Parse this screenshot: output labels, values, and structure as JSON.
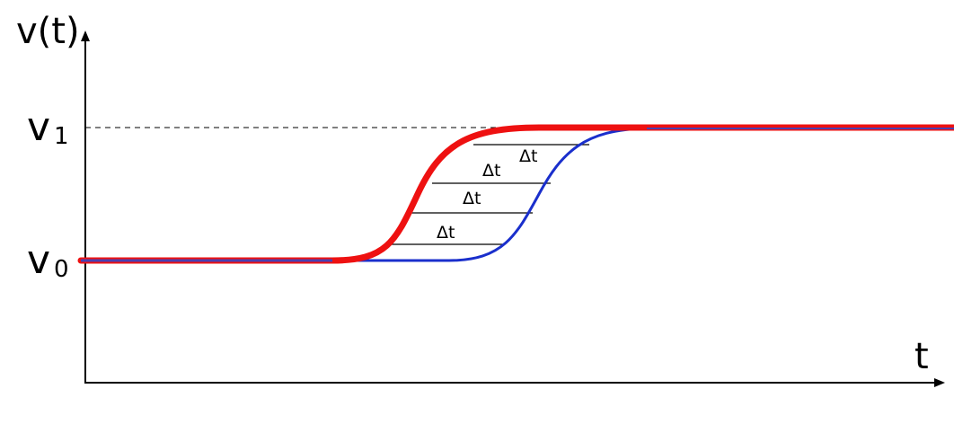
{
  "axes": {
    "y_label": "v(t)",
    "x_label": "t"
  },
  "levels": [
    {
      "symbol": "v",
      "subscript": "1"
    },
    {
      "symbol": "v",
      "subscript": "0"
    }
  ],
  "intervals": [
    {
      "label": "Δt"
    },
    {
      "label": "Δt"
    },
    {
      "label": "Δt"
    },
    {
      "label": "Δt"
    }
  ]
}
